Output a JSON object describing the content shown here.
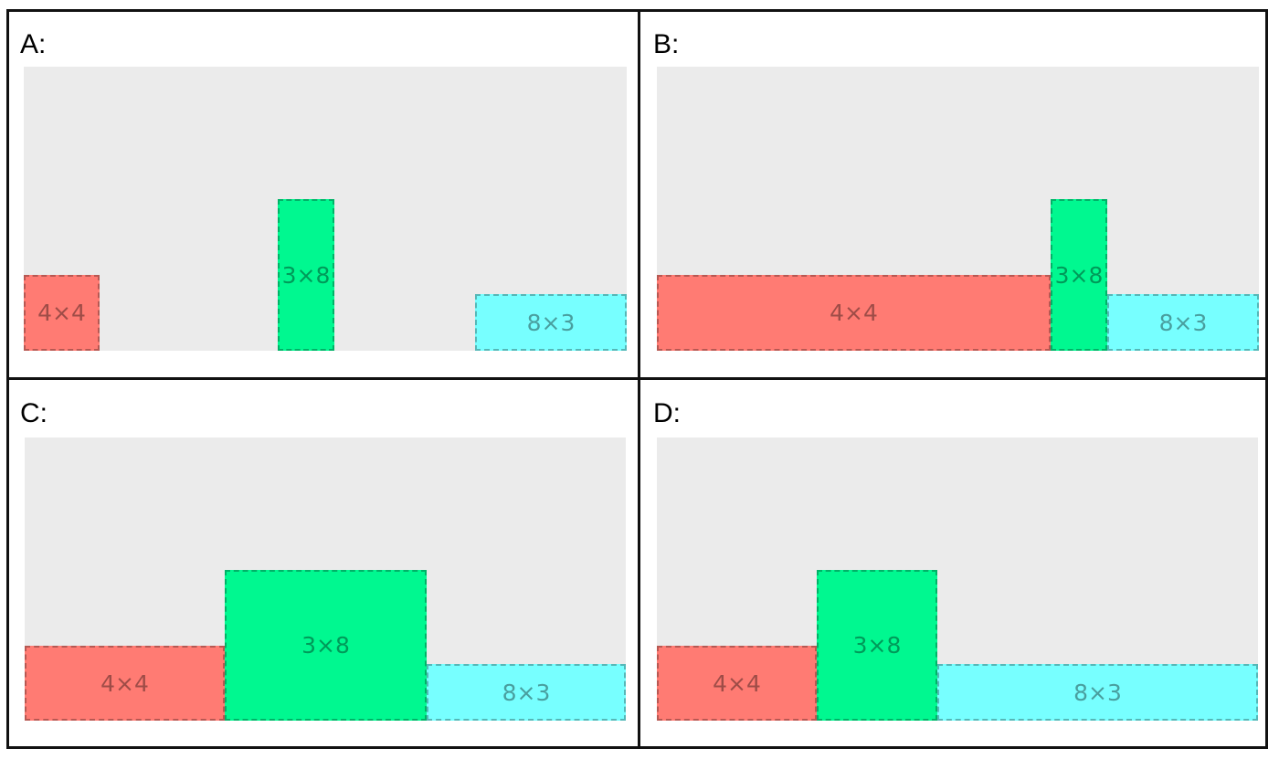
{
  "colors": {
    "red": "#ff7b73",
    "green": "#00f890",
    "cyan": "#77ffff",
    "canvas": "#ebebeb"
  },
  "panels": [
    {
      "label": "A:",
      "boxes": [
        {
          "text": "4×4"
        },
        {
          "text": "3×8"
        },
        {
          "text": "8×3"
        }
      ]
    },
    {
      "label": "B:",
      "boxes": [
        {
          "text": "4×4"
        },
        {
          "text": "3×8"
        },
        {
          "text": "8×3"
        }
      ]
    },
    {
      "label": "C:",
      "boxes": [
        {
          "text": "4×4"
        },
        {
          "text": "3×8"
        },
        {
          "text": "8×3"
        }
      ]
    },
    {
      "label": "D:",
      "boxes": [
        {
          "text": "4×4"
        },
        {
          "text": "3×8"
        },
        {
          "text": "8×3"
        }
      ]
    }
  ]
}
